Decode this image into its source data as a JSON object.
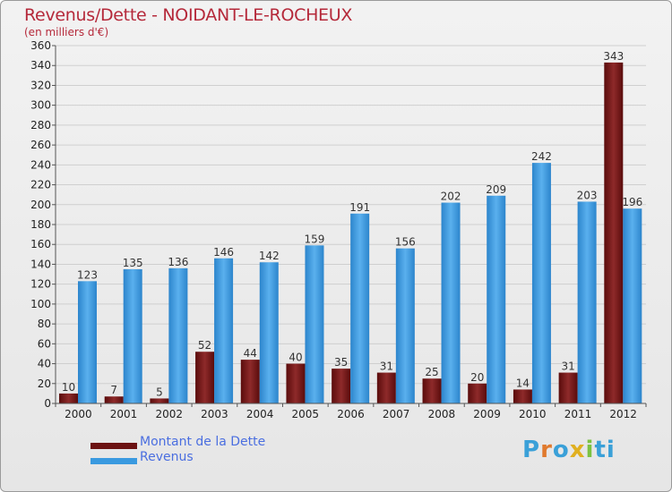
{
  "chart_data": {
    "type": "bar",
    "title": "Revenus/Dette - NOIDANT-LE-ROCHEUX",
    "subtitle": "(en milliers d'€)",
    "categories": [
      "2000",
      "2001",
      "2002",
      "2003",
      "2004",
      "2005",
      "2006",
      "2007",
      "2008",
      "2009",
      "2010",
      "2011",
      "2012"
    ],
    "series": [
      {
        "name": "Montant de la Dette",
        "color": "#7a1a1a",
        "values": [
          10,
          7,
          5,
          52,
          44,
          40,
          35,
          31,
          25,
          20,
          14,
          31,
          343
        ]
      },
      {
        "name": "Revenus",
        "color": "#3a9ae0",
        "values": [
          123,
          135,
          136,
          146,
          142,
          159,
          191,
          156,
          202,
          209,
          242,
          203,
          196
        ]
      }
    ],
    "ylim": [
      0,
      360
    ],
    "yticks": [
      0,
      20,
      40,
      60,
      80,
      100,
      120,
      140,
      160,
      180,
      200,
      220,
      240,
      260,
      280,
      300,
      320,
      340,
      360
    ],
    "grid": true,
    "legend": "bottom-left"
  },
  "legend": {
    "debt_label": "Montant de la Dette",
    "revenue_label": "Revenus"
  },
  "logo": [
    "P",
    "r",
    "o",
    "x",
    "i",
    "ti"
  ],
  "colors": {
    "debt": "#6b1212",
    "revenue": "#3a9ae0",
    "title": "#b5293a"
  }
}
